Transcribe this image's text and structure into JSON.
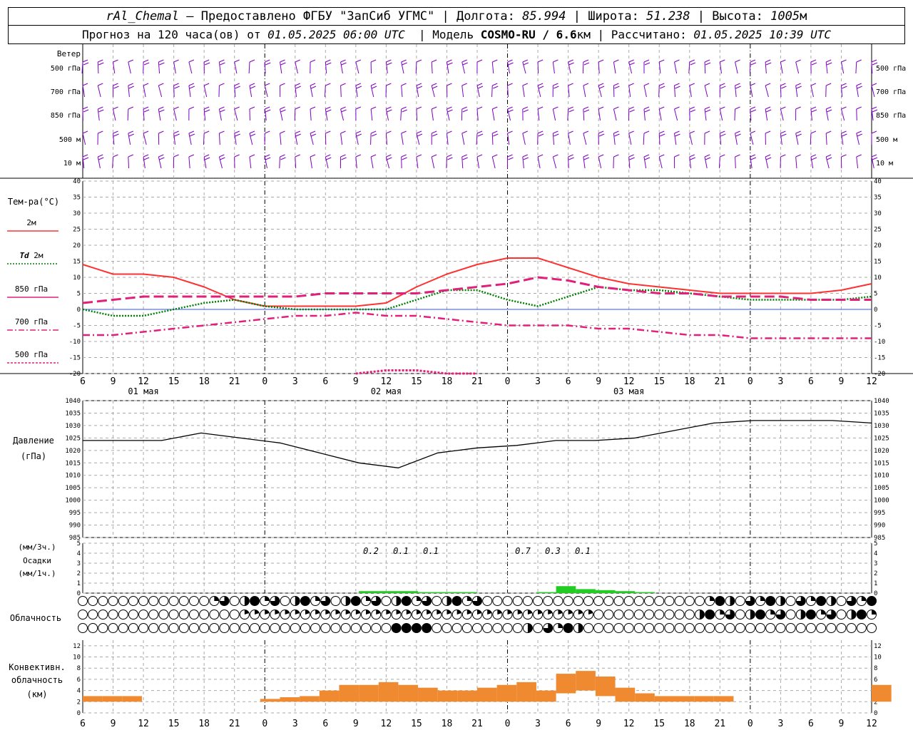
{
  "header": {
    "station": "rAl_Chemal",
    "dash": " – ",
    "provider": "Предоставлено ФГБУ \"ЗапСиб УГМС\"",
    "sep": " | ",
    "lon_label": "Долгота: ",
    "lon_value": "85.994",
    "lat_label": "Широта: ",
    "lat_value": "51.238",
    "alt_label": "Высота: ",
    "alt_value": "1005",
    "alt_unit": "м",
    "forecast_label": "Прогноз на 120 часа(ов) от ",
    "forecast_start": "01.05.2025 06:00 UTC",
    "model_label": "  | Модель ",
    "model_name": "COSMO-RU / 6.6",
    "model_unit": "км",
    "calc_label": " | Рассчитано: ",
    "calc_time": "01.05.2025 10:39 UTC"
  },
  "x_axis": {
    "hour_ticks": [
      "6",
      "9",
      "12",
      "15",
      "18",
      "21",
      "0",
      "3",
      "6",
      "9",
      "12",
      "15",
      "18",
      "21",
      "0",
      "3",
      "6",
      "9",
      "12",
      "15",
      "18",
      "21",
      "0",
      "3",
      "6",
      "9",
      "12"
    ],
    "day_labels": [
      "01 мая",
      "02 мая",
      "03 мая"
    ]
  },
  "wind": {
    "title": "Ветер",
    "levels": [
      "500 гПа",
      "700 гПа",
      "850 гПа",
      "500 м",
      "10 м"
    ],
    "color": "#8000c0"
  },
  "temperature": {
    "title": "Тем-ра(°C)",
    "legend": [
      {
        "label": "2м",
        "color": "#ff3030"
      },
      {
        "label_italic": "Td",
        "label": " 2м",
        "color": "#008000"
      },
      {
        "label": "850 гПа",
        "color": "#e0207a"
      },
      {
        "label": "700 гПа",
        "color": "#e0207a"
      },
      {
        "label": "500 гПа",
        "color": "#e0207a"
      }
    ],
    "y_ticks": [
      "40",
      "35",
      "30",
      "25",
      "20",
      "15",
      "10",
      "5",
      "0",
      "-5",
      "-10",
      "-15",
      "-20"
    ]
  },
  "pressure": {
    "title": "Давление",
    "unit": "(гПа)",
    "y_ticks": [
      "1040",
      "1035",
      "1030",
      "1025",
      "1020",
      "1015",
      "1010",
      "1005",
      "1000",
      "995",
      "990",
      "985"
    ]
  },
  "precip": {
    "unit_top": "(мм/3ч.)",
    "title": "Осадки",
    "unit_bottom": "(мм/1ч.)",
    "y_ticks": [
      "5",
      "4",
      "3",
      "2",
      "1",
      "0"
    ],
    "labels": [
      "0.2",
      "0.1",
      "0.1",
      "0.7",
      "0.3",
      "0.1"
    ],
    "color": "#22cc22"
  },
  "clouds": {
    "title": "Облачность"
  },
  "convective": {
    "title_1": "Конвективн.",
    "title_2": "облачность",
    "unit": "(км)",
    "y_ticks": [
      "12",
      "10",
      "8",
      "6",
      "4",
      "2",
      "0"
    ],
    "color": "#f08a30"
  },
  "chart_data": [
    {
      "type": "line",
      "title": "Тем-ра(°C)",
      "x_hours": [
        0,
        3,
        6,
        9,
        12,
        15,
        18,
        21,
        24,
        27,
        30,
        33,
        36,
        39,
        42,
        45,
        48,
        51,
        54,
        57,
        60,
        63,
        66,
        69,
        72,
        75,
        78
      ],
      "ylim": [
        -20,
        40
      ],
      "series": [
        {
          "name": "2м",
          "values": [
            14,
            11,
            11,
            10,
            7,
            3,
            1,
            1,
            1,
            1,
            2,
            7,
            11,
            14,
            16,
            16,
            13,
            10,
            8,
            7,
            6,
            5,
            5,
            5,
            5,
            6,
            8
          ]
        },
        {
          "name": "Td 2м",
          "values": [
            0,
            -2,
            -2,
            0,
            2,
            3,
            1,
            0,
            0,
            0,
            0,
            3,
            6,
            6,
            3,
            1,
            4,
            7,
            6,
            6,
            5,
            4,
            3,
            3,
            3,
            3,
            4
          ]
        },
        {
          "name": "850 гПа",
          "values": [
            2,
            3,
            4,
            4,
            4,
            4,
            4,
            4,
            5,
            5,
            5,
            5,
            6,
            7,
            8,
            10,
            9,
            7,
            6,
            5,
            5,
            4,
            4,
            4,
            3,
            3,
            3
          ]
        },
        {
          "name": "700 гПа",
          "values": [
            -8,
            -8,
            -7,
            -6,
            -5,
            -4,
            -3,
            -2,
            -2,
            -1,
            -2,
            -2,
            -3,
            -4,
            -5,
            -5,
            -5,
            -6,
            -6,
            -7,
            -8,
            -8,
            -9,
            -9,
            -9,
            -9,
            -9
          ]
        },
        {
          "name": "500 гПа",
          "values": [
            null,
            null,
            null,
            null,
            null,
            null,
            null,
            null,
            null,
            -20,
            -19,
            -19,
            -20,
            -20,
            null,
            null,
            null,
            null,
            null,
            null,
            null,
            null,
            null,
            null,
            null,
            null,
            null
          ]
        }
      ]
    },
    {
      "type": "line",
      "title": "Давление",
      "x_hours": [
        0,
        6,
        12,
        18,
        24,
        30,
        36,
        42,
        48,
        54,
        60,
        66,
        72,
        78,
        84,
        90,
        96,
        102,
        108,
        114,
        120
      ],
      "ylim": [
        985,
        1040
      ],
      "series": [
        {
          "name": "Давление",
          "values": [
            1024,
            1024,
            1024,
            1027,
            1025,
            1023,
            1019,
            1015,
            1013,
            1019,
            1021,
            1022,
            1024,
            1024,
            1025,
            1028,
            1031,
            1032,
            1032,
            1032,
            1031
          ]
        }
      ]
    },
    {
      "type": "bar",
      "title": "Осадки",
      "x_hours": [
        36,
        39,
        42,
        45,
        48,
        51,
        54,
        57,
        60,
        63,
        66,
        69,
        72,
        75,
        78,
        81,
        84,
        87
      ],
      "values": [
        0,
        0,
        0.2,
        0.2,
        0.2,
        0.1,
        0.1,
        0.1,
        0,
        0,
        0,
        0.1,
        0.7,
        0.4,
        0.3,
        0.2,
        0.1,
        0
      ]
    },
    {
      "type": "bar",
      "title": "Конвективн. облачность (км)",
      "x_hours": [
        0,
        3,
        6,
        27,
        30,
        33,
        36,
        39,
        42,
        45,
        48,
        51,
        54,
        57,
        60,
        63,
        66,
        69,
        72,
        75,
        78,
        81,
        84,
        87,
        90,
        93,
        96,
        120
      ],
      "values": [
        3,
        3,
        3,
        2.5,
        2.8,
        3,
        4,
        5,
        5,
        5.5,
        5,
        4.5,
        4,
        4,
        4.5,
        5,
        5.5,
        4,
        7,
        7.5,
        6.5,
        4.5,
        3.5,
        3,
        3,
        3,
        3,
        5
      ]
    }
  ]
}
